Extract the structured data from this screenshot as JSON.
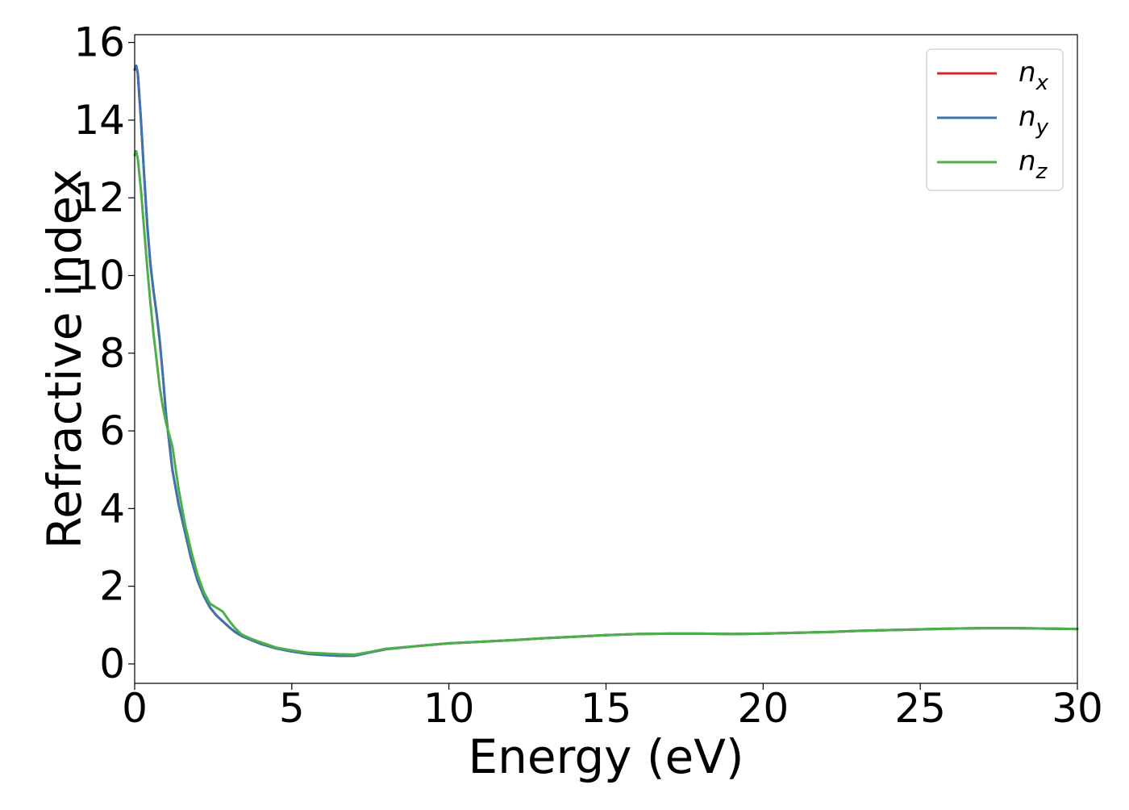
{
  "chart_data": {
    "type": "line",
    "title": "",
    "xlabel": "Energy (eV)",
    "ylabel": "Refractive index",
    "xlim": [
      0,
      30
    ],
    "ylim": [
      -0.5,
      16.2
    ],
    "xticks": [
      0,
      5,
      10,
      15,
      20,
      25,
      30
    ],
    "yticks": [
      0,
      2,
      4,
      6,
      8,
      10,
      12,
      14,
      16
    ],
    "grid": false,
    "legend": {
      "position": "top-right"
    },
    "series": [
      {
        "name": "n_x",
        "label_main": "n",
        "label_sub": "x",
        "color": "#d62728",
        "x": [
          0,
          0.05,
          0.1,
          0.2,
          0.3,
          0.4,
          0.5,
          0.6,
          0.7,
          0.8,
          0.9,
          1.0,
          1.2,
          1.4,
          1.6,
          1.8,
          2.0,
          2.2,
          2.4,
          2.6,
          2.8,
          3.0,
          3.2,
          3.4,
          3.7,
          4.0,
          4.5,
          5.0,
          5.5,
          6.0,
          6.5,
          7.0,
          7.5,
          8.0,
          9.0,
          10,
          11,
          12,
          13,
          14,
          15,
          16,
          17,
          18,
          19,
          20,
          21,
          22,
          23,
          24,
          25,
          26,
          27,
          28,
          29,
          30
        ],
        "y": [
          15.3,
          15.4,
          15.2,
          14.0,
          12.6,
          11.3,
          10.3,
          9.6,
          9.0,
          8.3,
          7.4,
          6.4,
          5.0,
          4.1,
          3.4,
          2.7,
          2.15,
          1.75,
          1.45,
          1.25,
          1.1,
          0.95,
          0.82,
          0.72,
          0.62,
          0.52,
          0.4,
          0.32,
          0.26,
          0.23,
          0.21,
          0.21,
          0.3,
          0.38,
          0.46,
          0.53,
          0.57,
          0.61,
          0.66,
          0.7,
          0.74,
          0.77,
          0.78,
          0.78,
          0.77,
          0.78,
          0.8,
          0.82,
          0.85,
          0.87,
          0.89,
          0.91,
          0.92,
          0.92,
          0.91,
          0.9
        ]
      },
      {
        "name": "n_y",
        "label_main": "n",
        "label_sub": "y",
        "color": "#3b75af",
        "x": [
          0,
          0.05,
          0.1,
          0.2,
          0.3,
          0.4,
          0.5,
          0.6,
          0.7,
          0.8,
          0.9,
          1.0,
          1.2,
          1.4,
          1.6,
          1.8,
          2.0,
          2.2,
          2.4,
          2.6,
          2.8,
          3.0,
          3.2,
          3.4,
          3.7,
          4.0,
          4.5,
          5.0,
          5.5,
          6.0,
          6.5,
          7.0,
          7.5,
          8.0,
          9.0,
          10,
          11,
          12,
          13,
          14,
          15,
          16,
          17,
          18,
          19,
          20,
          21,
          22,
          23,
          24,
          25,
          26,
          27,
          28,
          29,
          30
        ],
        "y": [
          15.3,
          15.4,
          15.2,
          14.0,
          12.6,
          11.3,
          10.3,
          9.6,
          9.0,
          8.3,
          7.4,
          6.4,
          5.0,
          4.1,
          3.4,
          2.7,
          2.15,
          1.75,
          1.45,
          1.25,
          1.1,
          0.95,
          0.82,
          0.72,
          0.62,
          0.52,
          0.4,
          0.32,
          0.26,
          0.23,
          0.21,
          0.21,
          0.3,
          0.38,
          0.46,
          0.53,
          0.57,
          0.61,
          0.66,
          0.7,
          0.74,
          0.77,
          0.78,
          0.78,
          0.77,
          0.78,
          0.8,
          0.82,
          0.85,
          0.87,
          0.89,
          0.91,
          0.92,
          0.92,
          0.91,
          0.9
        ]
      },
      {
        "name": "n_z",
        "label_main": "n",
        "label_sub": "z",
        "color": "#4daf4a",
        "x": [
          0,
          0.05,
          0.1,
          0.2,
          0.3,
          0.4,
          0.5,
          0.6,
          0.7,
          0.8,
          0.9,
          1.0,
          1.2,
          1.4,
          1.6,
          1.8,
          2.0,
          2.2,
          2.4,
          2.6,
          2.8,
          3.0,
          3.2,
          3.4,
          3.7,
          4.0,
          4.5,
          5.0,
          5.5,
          6.0,
          6.5,
          7.0,
          7.5,
          8.0,
          9.0,
          10,
          11,
          12,
          13,
          14,
          15,
          16,
          17,
          18,
          19,
          20,
          21,
          22,
          23,
          24,
          25,
          26,
          27,
          28,
          29,
          30
        ],
        "y": [
          13.1,
          13.2,
          13.0,
          12.2,
          11.2,
          10.2,
          9.3,
          8.5,
          7.8,
          7.1,
          6.6,
          6.2,
          5.6,
          4.5,
          3.6,
          2.9,
          2.3,
          1.85,
          1.55,
          1.45,
          1.35,
          1.12,
          0.92,
          0.76,
          0.65,
          0.56,
          0.42,
          0.35,
          0.29,
          0.27,
          0.25,
          0.24,
          0.31,
          0.39,
          0.46,
          0.53,
          0.57,
          0.61,
          0.66,
          0.7,
          0.74,
          0.77,
          0.78,
          0.78,
          0.77,
          0.78,
          0.8,
          0.82,
          0.85,
          0.87,
          0.89,
          0.91,
          0.92,
          0.92,
          0.91,
          0.9
        ]
      }
    ]
  }
}
